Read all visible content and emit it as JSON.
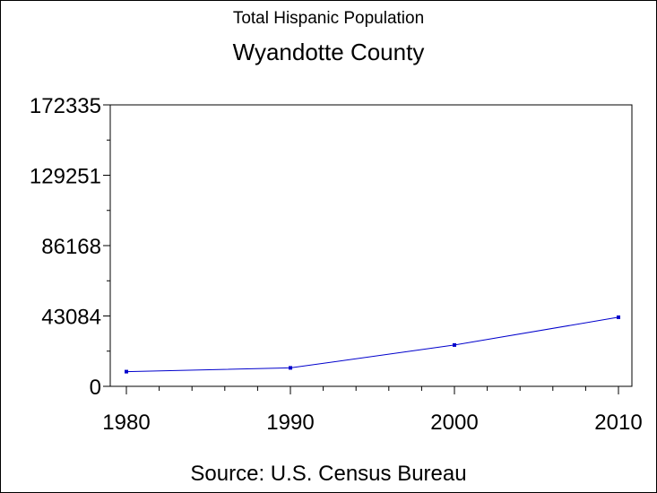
{
  "chart_data": {
    "type": "line",
    "title": "Total Hispanic Population",
    "subtitle": "Wyandotte County",
    "source": "Source: U.S. Census Bureau",
    "x": [
      1980,
      1990,
      2000,
      2010
    ],
    "xticks": [
      "1980",
      "1990",
      "2000",
      "2010"
    ],
    "yticks": [
      "0",
      "43084",
      "86168",
      "129251",
      "172335"
    ],
    "ytick_values": [
      0,
      43084,
      86168,
      129251,
      172335
    ],
    "ylim": [
      0,
      172335
    ],
    "xlim": [
      1980,
      2010
    ],
    "series": [
      {
        "values": [
          9000,
          11300,
          25300,
          42300
        ],
        "color": "#0000cc"
      }
    ],
    "grid": false
  }
}
